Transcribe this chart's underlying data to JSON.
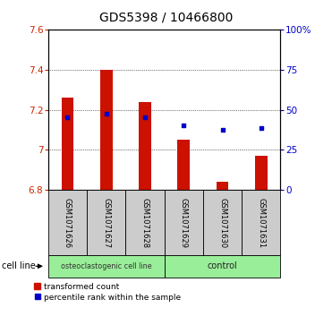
{
  "title": "GDS5398 / 10466800",
  "samples": [
    "GSM1071626",
    "GSM1071627",
    "GSM1071628",
    "GSM1071629",
    "GSM1071630",
    "GSM1071631"
  ],
  "bar_tops": [
    7.26,
    7.4,
    7.24,
    7.05,
    6.84,
    6.97
  ],
  "bar_bottom": 6.8,
  "blue_y": [
    7.16,
    7.18,
    7.16,
    7.12,
    7.1,
    7.11
  ],
  "ylim": [
    6.8,
    7.6
  ],
  "yticks_left": [
    6.8,
    7.0,
    7.2,
    7.4,
    7.6
  ],
  "yticks_right": [
    0,
    25,
    50,
    75,
    100
  ],
  "bar_color": "#cc1100",
  "blue_color": "#0000cc",
  "group1_label": "osteoclastogenic cell line",
  "group2_label": "control",
  "cell_line_label": "cell line",
  "legend_bar_label": "transformed count",
  "legend_dot_label": "percentile rank within the sample",
  "group_bg_color": "#99ee99",
  "sample_bg_color": "#cccccc",
  "plot_bg_color": "#ffffff",
  "title_fontsize": 10,
  "tick_fontsize": 7.5,
  "sample_fontsize": 6.0,
  "group_fontsize": 7.0,
  "legend_fontsize": 6.5,
  "bar_width": 0.32
}
